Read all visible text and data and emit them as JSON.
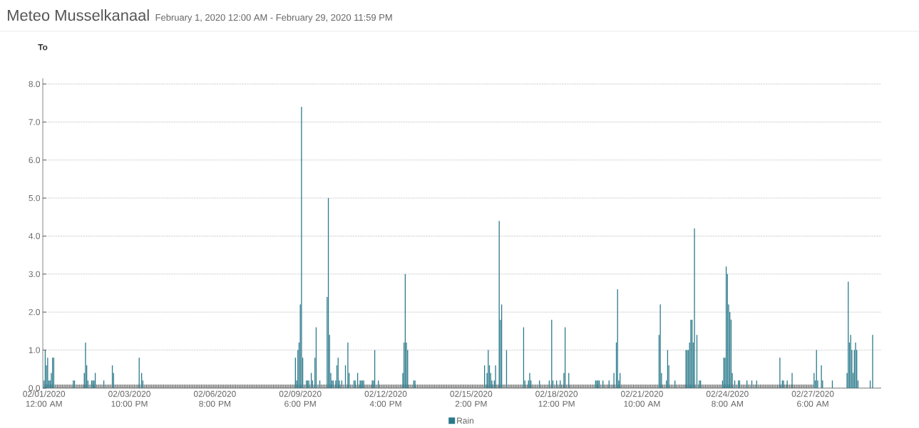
{
  "chart_data": {
    "type": "bar",
    "title": "Meteo Musselkanaal",
    "subtitle": "February 1, 2020 12:00 AM - February 29, 2020 11:59 PM",
    "ylabel": "To",
    "x": [
      "2020-02-01T00:00",
      "2020-02-01T01:00",
      "2020-02-01T02:00",
      "2020-02-01T03:00",
      "2020-02-01T04:00",
      "2020-02-01T05:00",
      "2020-02-01T06:00",
      "2020-02-01T07:00",
      "2020-02-01T08:00",
      "2020-02-02T00:00",
      "2020-02-02T01:00",
      "2020-02-02T09:00",
      "2020-02-02T10:00",
      "2020-02-02T11:00",
      "2020-02-02T12:00",
      "2020-02-02T15:00",
      "2020-02-02T16:00",
      "2020-02-02T17:00",
      "2020-02-02T18:00",
      "2020-02-03T01:00",
      "2020-02-03T08:00",
      "2020-02-03T09:00",
      "2020-02-04T06:00",
      "2020-02-04T08:00",
      "2020-02-04T09:00",
      "2020-02-09T14:00",
      "2020-02-09T15:00",
      "2020-02-09T16:00",
      "2020-02-09T17:00",
      "2020-02-09T18:00",
      "2020-02-09T19:00",
      "2020-02-09T20:00",
      "2020-02-09T23:00",
      "2020-02-10T00:00",
      "2020-02-10T01:00",
      "2020-02-10T03:00",
      "2020-02-10T04:00",
      "2020-02-10T06:00",
      "2020-02-10T07:00",
      "2020-02-10T10:00",
      "2020-02-10T16:00",
      "2020-02-10T17:00",
      "2020-02-10T18:00",
      "2020-02-10T19:00",
      "2020-02-10T20:00",
      "2020-02-10T21:00",
      "2020-02-10T23:00",
      "2020-02-11T00:00",
      "2020-02-11T01:00",
      "2020-02-11T02:00",
      "2020-02-11T04:00",
      "2020-02-11T07:00",
      "2020-02-11T09:00",
      "2020-02-11T10:00",
      "2020-02-11T14:00",
      "2020-02-11T15:00",
      "2020-02-11T17:00",
      "2020-02-11T19:00",
      "2020-02-11T20:00",
      "2020-02-11T21:00",
      "2020-02-11T22:00",
      "2020-02-12T05:00",
      "2020-02-12T06:00",
      "2020-02-12T07:00",
      "2020-02-12T10:00",
      "2020-02-13T06:00",
      "2020-02-13T07:00",
      "2020-02-13T08:00",
      "2020-02-13T09:00",
      "2020-02-13T10:00",
      "2020-02-13T15:00",
      "2020-02-13T16:00",
      "2020-02-16T01:00",
      "2020-02-16T03:00",
      "2020-02-16T04:00",
      "2020-02-16T05:00",
      "2020-02-16T06:00",
      "2020-02-16T07:00",
      "2020-02-16T09:00",
      "2020-02-16T10:00",
      "2020-02-16T13:00",
      "2020-02-16T14:00",
      "2020-02-16T15:00",
      "2020-02-16T19:00",
      "2020-02-17T09:00",
      "2020-02-17T10:00",
      "2020-02-17T13:00",
      "2020-02-17T14:00",
      "2020-02-17T15:00",
      "2020-02-17T22:00",
      "2020-02-18T06:00",
      "2020-02-18T08:00",
      "2020-02-18T09:00",
      "2020-02-18T12:00",
      "2020-02-18T15:00",
      "2020-02-18T18:00",
      "2020-02-18T19:00",
      "2020-02-18T22:00",
      "2020-02-19T20:00",
      "2020-02-19T21:00",
      "2020-02-19T22:00",
      "2020-02-19T23:00",
      "2020-02-20T02:00",
      "2020-02-20T07:00",
      "2020-02-20T11:00",
      "2020-02-20T13:00",
      "2020-02-20T14:00",
      "2020-02-20T15:00",
      "2020-02-20T16:00",
      "2020-02-22T00:00",
      "2020-02-22T01:00",
      "2020-02-22T02:00",
      "2020-02-22T06:00",
      "2020-02-22T07:00",
      "2020-02-22T08:00",
      "2020-02-22T13:00",
      "2020-02-22T22:00",
      "2020-02-22T23:00",
      "2020-02-23T00:00",
      "2020-02-23T01:00",
      "2020-02-23T02:00",
      "2020-02-23T03:00",
      "2020-02-23T04:00",
      "2020-02-23T05:00",
      "2020-02-23T07:00",
      "2020-02-23T09:00",
      "2020-02-23T10:00",
      "2020-02-24T04:00",
      "2020-02-24T05:00",
      "2020-02-24T06:00",
      "2020-02-24T07:00",
      "2020-02-24T08:00",
      "2020-02-24T09:00",
      "2020-02-24T10:00",
      "2020-02-24T11:00",
      "2020-02-24T12:00",
      "2020-02-24T14:00",
      "2020-02-24T17:00",
      "2020-02-24T18:00",
      "2020-02-25T00:00",
      "2020-02-25T04:00",
      "2020-02-25T08:00",
      "2020-02-26T03:00",
      "2020-02-26T05:00",
      "2020-02-26T06:00",
      "2020-02-26T09:00",
      "2020-02-26T13:00",
      "2020-02-27T07:00",
      "2020-02-27T08:00",
      "2020-02-27T09:00",
      "2020-02-27T10:00",
      "2020-02-27T13:00",
      "2020-02-27T14:00",
      "2020-02-27T22:00",
      "2020-02-28T10:00",
      "2020-02-28T11:00",
      "2020-02-28T12:00",
      "2020-02-28T13:00",
      "2020-02-28T14:00",
      "2020-02-28T15:00",
      "2020-02-28T16:00",
      "2020-02-28T17:00",
      "2020-02-28T18:00",
      "2020-02-28T19:00",
      "2020-02-29T05:00",
      "2020-02-29T07:00"
    ],
    "series": [
      {
        "name": "Rain",
        "color": "#2b7a8b",
        "values": [
          0.2,
          1.0,
          0.6,
          0.8,
          0.2,
          0.2,
          0.4,
          0.8,
          0.8,
          0.2,
          0.2,
          0.4,
          1.2,
          0.6,
          0.2,
          0.2,
          0.2,
          0.2,
          0.4,
          0.2,
          0.6,
          0.4,
          0.8,
          0.4,
          0.2,
          0.8,
          0.2,
          1.0,
          1.2,
          2.2,
          7.4,
          0.8,
          0.2,
          0.2,
          0.2,
          0.4,
          0.2,
          0.8,
          1.6,
          0.2,
          2.4,
          5.0,
          1.4,
          0.4,
          0.2,
          0.2,
          0.2,
          0.6,
          0.8,
          0.2,
          0.2,
          0.6,
          1.2,
          0.4,
          0.2,
          0.2,
          0.4,
          0.2,
          0.2,
          0.2,
          0.2,
          0.2,
          0.2,
          1.0,
          0.2,
          0.4,
          1.2,
          3.0,
          1.2,
          1.0,
          0.2,
          0.2,
          0.6,
          0.4,
          1.0,
          0.6,
          0.4,
          0.2,
          0.2,
          0.6,
          4.4,
          1.8,
          2.2,
          1.0,
          1.6,
          0.2,
          0.2,
          0.4,
          0.2,
          0.2,
          0.2,
          1.8,
          0.2,
          0.2,
          0.2,
          0.4,
          1.6,
          0.4,
          0.2,
          0.2,
          0.2,
          0.2,
          0.2,
          0.2,
          0.4,
          1.2,
          2.6,
          0.2,
          0.4,
          1.4,
          2.2,
          0.4,
          0.2,
          1.0,
          0.6,
          0.2,
          1.0,
          1.0,
          1.0,
          1.2,
          1.8,
          1.8,
          1.2,
          4.2,
          1.4,
          0.2,
          0.2,
          0.2,
          0.8,
          0.8,
          3.2,
          3.0,
          2.2,
          2.0,
          1.8,
          0.4,
          0.2,
          0.2,
          0.2,
          0.2,
          0.2,
          0.2,
          0.8,
          0.2,
          0.2,
          0.2,
          0.4,
          0.4,
          0.2,
          1.0,
          0.2,
          0.6,
          0.2,
          0.2,
          0.4,
          2.8,
          1.2,
          1.4,
          1.0,
          0.4,
          1.0,
          1.2,
          1.0,
          0.2,
          0.2,
          1.4
        ]
      }
    ],
    "xlim": [
      "2020-01-31T23:00",
      "2020-02-29T14:00"
    ],
    "xticks": [
      {
        "value": "2020-02-01T00:00",
        "label": "02/01/2020 12:00 AM"
      },
      {
        "value": "2020-02-03T22:00",
        "label": "02/03/2020 10:00 PM"
      },
      {
        "value": "2020-02-06T20:00",
        "label": "02/06/2020 8:00 PM"
      },
      {
        "value": "2020-02-09T18:00",
        "label": "02/09/2020 6:00 PM"
      },
      {
        "value": "2020-02-12T16:00",
        "label": "02/12/2020 4:00 PM"
      },
      {
        "value": "2020-02-15T14:00",
        "label": "02/15/2020 2:00 PM"
      },
      {
        "value": "2020-02-18T12:00",
        "label": "02/18/2020 12:00 PM"
      },
      {
        "value": "2020-02-21T10:00",
        "label": "02/21/2020 10:00 AM"
      },
      {
        "value": "2020-02-24T08:00",
        "label": "02/24/2020 8:00 AM"
      },
      {
        "value": "2020-02-27T06:00",
        "label": "02/27/2020 6:00 AM"
      }
    ],
    "ylim": [
      0,
      8.15
    ],
    "yticks": [
      {
        "value": 0,
        "label": "0.0"
      },
      {
        "value": 1,
        "label": "1.0"
      },
      {
        "value": 2,
        "label": "2.0"
      },
      {
        "value": 3,
        "label": "3.0"
      },
      {
        "value": 4,
        "label": "4.0"
      },
      {
        "value": 5,
        "label": "5.0"
      },
      {
        "value": 6,
        "label": "6.0"
      },
      {
        "value": 7,
        "label": "7.0"
      },
      {
        "value": 8,
        "label": "8.0"
      }
    ],
    "grid": "y",
    "legend": "bottom"
  }
}
